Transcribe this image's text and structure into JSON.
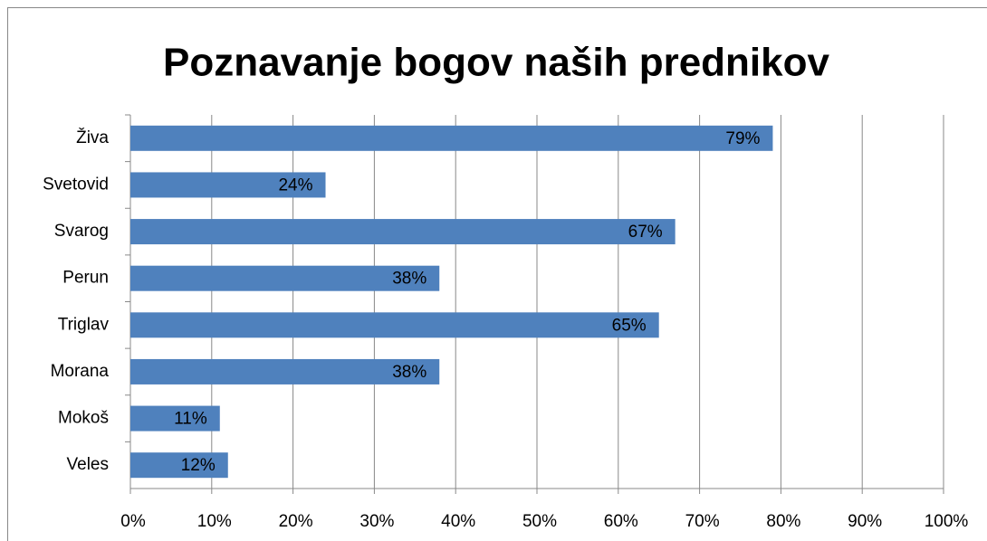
{
  "chart_data": {
    "type": "bar",
    "orientation": "horizontal",
    "title": "Poznavanje bogov naših prednikov",
    "categories": [
      "Živa",
      "Svetovid",
      "Svarog",
      "Perun",
      "Triglav",
      "Morana",
      "Mokoš",
      "Veles"
    ],
    "values": [
      79,
      24,
      67,
      38,
      65,
      38,
      11,
      12
    ],
    "value_labels": [
      "79%",
      "24%",
      "67%",
      "38%",
      "65%",
      "38%",
      "11%",
      "12%"
    ],
    "color": "#4f81bd",
    "xlim": [
      0,
      100
    ],
    "xticks": [
      {
        "value": 0,
        "label": "0%"
      },
      {
        "value": 10,
        "label": "10%"
      },
      {
        "value": 20,
        "label": "20%"
      },
      {
        "value": 30,
        "label": "30%"
      },
      {
        "value": 40,
        "label": "40%"
      },
      {
        "value": 50,
        "label": "50%"
      },
      {
        "value": 60,
        "label": "60%"
      },
      {
        "value": 70,
        "label": "70%"
      },
      {
        "value": 80,
        "label": "80%"
      },
      {
        "value": 90,
        "label": "90%"
      },
      {
        "value": 100,
        "label": "100%"
      }
    ],
    "grid": true
  }
}
